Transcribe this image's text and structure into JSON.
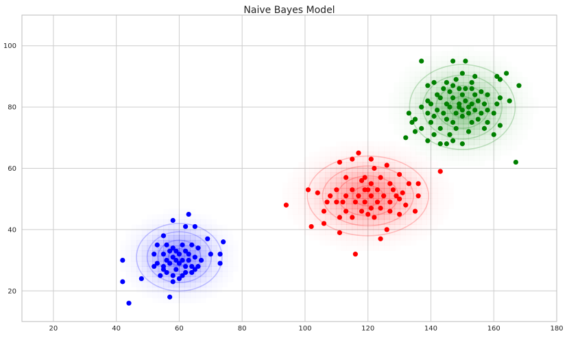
{
  "chart_data": {
    "type": "scatter",
    "title": "Naive Bayes Model",
    "xlabel": "",
    "ylabel": "",
    "xlim": [
      10,
      180
    ],
    "ylim": [
      10,
      110
    ],
    "x_ticks": [
      20,
      40,
      60,
      80,
      100,
      120,
      140,
      160,
      180
    ],
    "y_ticks": [
      20,
      40,
      60,
      80,
      100
    ],
    "grid": true,
    "legend": "none",
    "series": [
      {
        "color": "#0000ff",
        "mean": [
          60,
          31
        ],
        "points": [
          [
            58,
            43
          ],
          [
            63,
            45
          ],
          [
            62,
            41
          ],
          [
            65,
            41
          ],
          [
            55,
            38
          ],
          [
            69,
            37
          ],
          [
            74,
            36
          ],
          [
            53,
            35
          ],
          [
            56,
            35
          ],
          [
            61,
            35
          ],
          [
            64,
            35
          ],
          [
            58,
            34
          ],
          [
            57,
            33
          ],
          [
            59,
            33
          ],
          [
            62,
            33
          ],
          [
            66,
            34
          ],
          [
            52,
            32
          ],
          [
            55,
            32
          ],
          [
            58,
            31
          ],
          [
            60,
            32
          ],
          [
            63,
            32
          ],
          [
            65,
            31
          ],
          [
            70,
            32
          ],
          [
            73,
            32
          ],
          [
            56,
            30
          ],
          [
            59,
            30
          ],
          [
            61,
            30
          ],
          [
            63,
            30
          ],
          [
            67,
            30
          ],
          [
            42,
            30
          ],
          [
            53,
            29
          ],
          [
            57,
            29
          ],
          [
            60,
            29
          ],
          [
            64,
            28
          ],
          [
            73,
            29
          ],
          [
            52,
            28
          ],
          [
            55,
            28
          ],
          [
            59,
            27
          ],
          [
            62,
            28
          ],
          [
            66,
            28
          ],
          [
            56,
            26
          ],
          [
            58,
            25
          ],
          [
            61,
            25
          ],
          [
            64,
            26
          ],
          [
            54,
            25
          ],
          [
            60,
            24
          ],
          [
            48,
            24
          ],
          [
            42,
            23
          ],
          [
            57,
            18
          ],
          [
            44,
            16
          ],
          [
            55,
            27
          ],
          [
            62,
            26
          ],
          [
            58,
            23
          ],
          [
            65,
            27
          ]
        ]
      },
      {
        "color": "#ff0000",
        "mean": [
          120,
          51
        ],
        "points": [
          [
            117,
            65
          ],
          [
            115,
            63
          ],
          [
            121,
            63
          ],
          [
            111,
            62
          ],
          [
            122,
            60
          ],
          [
            126,
            61
          ],
          [
            143,
            59
          ],
          [
            119,
            57
          ],
          [
            124,
            57
          ],
          [
            130,
            58
          ],
          [
            113,
            57
          ],
          [
            118,
            56
          ],
          [
            121,
            55
          ],
          [
            127,
            55
          ],
          [
            133,
            55
          ],
          [
            136,
            55
          ],
          [
            101,
            53
          ],
          [
            110,
            53
          ],
          [
            115,
            53
          ],
          [
            119,
            53
          ],
          [
            123,
            53
          ],
          [
            128,
            53
          ],
          [
            131,
            52
          ],
          [
            104,
            52
          ],
          [
            108,
            51
          ],
          [
            113,
            51
          ],
          [
            117,
            51
          ],
          [
            121,
            51
          ],
          [
            125,
            51
          ],
          [
            129,
            51
          ],
          [
            136,
            51
          ],
          [
            112,
            49
          ],
          [
            116,
            49
          ],
          [
            119,
            49
          ],
          [
            123,
            49
          ],
          [
            127,
            49
          ],
          [
            130,
            50
          ],
          [
            94,
            48
          ],
          [
            107,
            49
          ],
          [
            110,
            49
          ],
          [
            132,
            48
          ],
          [
            121,
            47
          ],
          [
            118,
            46
          ],
          [
            124,
            47
          ],
          [
            106,
            46
          ],
          [
            113,
            46
          ],
          [
            120,
            45
          ],
          [
            127,
            46
          ],
          [
            135,
            46
          ],
          [
            111,
            44
          ],
          [
            115,
            44
          ],
          [
            122,
            44
          ],
          [
            130,
            45
          ],
          [
            106,
            42
          ],
          [
            102,
            41
          ],
          [
            126,
            40
          ],
          [
            111,
            39
          ],
          [
            124,
            37
          ],
          [
            116,
            32
          ],
          [
            120,
            53
          ]
        ]
      },
      {
        "color": "#008000",
        "mean": [
          150,
          80
        ],
        "points": [
          [
            137,
            95
          ],
          [
            151,
            95
          ],
          [
            147,
            95
          ],
          [
            150,
            91
          ],
          [
            154,
            90
          ],
          [
            161,
            90
          ],
          [
            162,
            89
          ],
          [
            164,
            91
          ],
          [
            148,
            89
          ],
          [
            153,
            88
          ],
          [
            141,
            88
          ],
          [
            145,
            88
          ],
          [
            144,
            86
          ],
          [
            139,
            87
          ],
          [
            168,
            87
          ],
          [
            147,
            87
          ],
          [
            149,
            86
          ],
          [
            151,
            86
          ],
          [
            153,
            86
          ],
          [
            156,
            85
          ],
          [
            146,
            85
          ],
          [
            142,
            84
          ],
          [
            150,
            84
          ],
          [
            154,
            84
          ],
          [
            158,
            84
          ],
          [
            162,
            83
          ],
          [
            139,
            82
          ],
          [
            143,
            83
          ],
          [
            147,
            83
          ],
          [
            151,
            82
          ],
          [
            155,
            82
          ],
          [
            165,
            82
          ],
          [
            140,
            81
          ],
          [
            145,
            81
          ],
          [
            149,
            81
          ],
          [
            153,
            81
          ],
          [
            157,
            81
          ],
          [
            161,
            81
          ],
          [
            137,
            80
          ],
          [
            142,
            79
          ],
          [
            146,
            80
          ],
          [
            150,
            79
          ],
          [
            154,
            79
          ],
          [
            158,
            79
          ],
          [
            133,
            78
          ],
          [
            139,
            78
          ],
          [
            144,
            78
          ],
          [
            148,
            78
          ],
          [
            152,
            78
          ],
          [
            156,
            78
          ],
          [
            160,
            78
          ],
          [
            135,
            76
          ],
          [
            141,
            77
          ],
          [
            145,
            76
          ],
          [
            150,
            77
          ],
          [
            155,
            76
          ],
          [
            134,
            75
          ],
          [
            140,
            75
          ],
          [
            147,
            75
          ],
          [
            153,
            75
          ],
          [
            158,
            75
          ],
          [
            162,
            74
          ],
          [
            137,
            73
          ],
          [
            143,
            73
          ],
          [
            148,
            73
          ],
          [
            152,
            72
          ],
          [
            157,
            73
          ],
          [
            135,
            72
          ],
          [
            141,
            71
          ],
          [
            146,
            71
          ],
          [
            160,
            71
          ],
          [
            132,
            70
          ],
          [
            139,
            69
          ],
          [
            147,
            69
          ],
          [
            143,
            68
          ],
          [
            150,
            68
          ],
          [
            145,
            68
          ],
          [
            167,
            62
          ],
          [
            149,
            80
          ],
          [
            152,
            80
          ]
        ]
      }
    ]
  }
}
